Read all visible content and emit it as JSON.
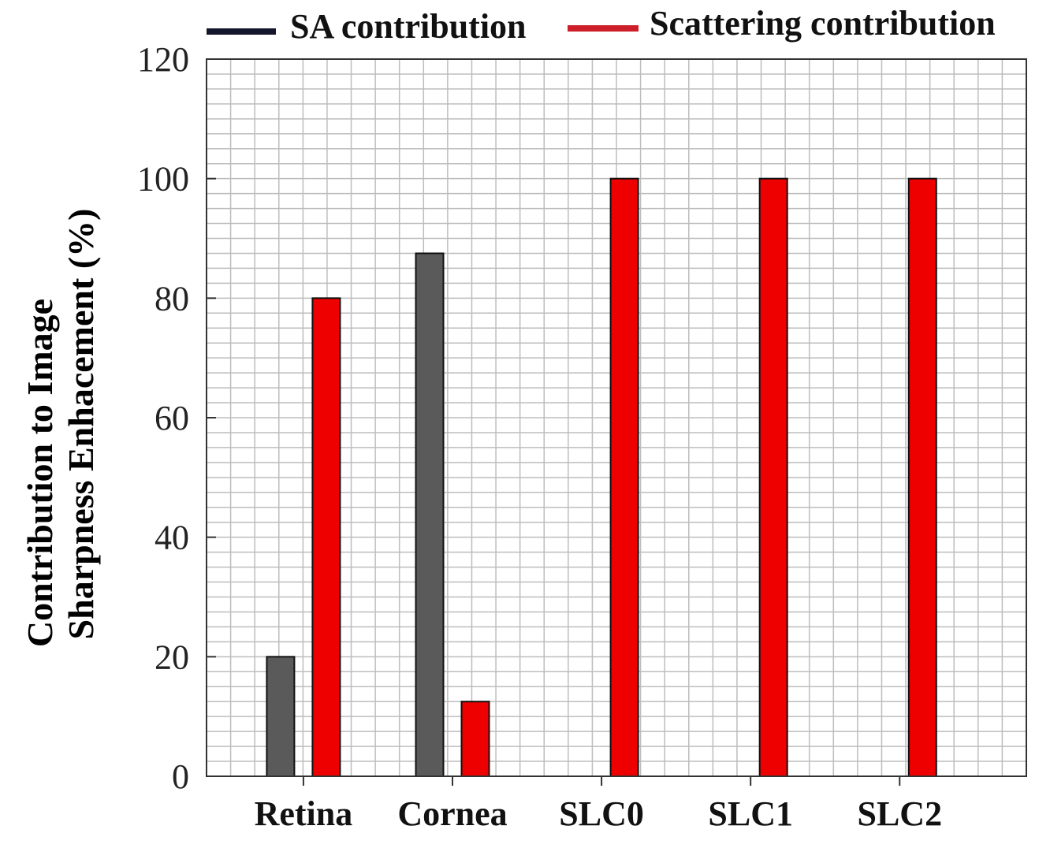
{
  "chart_data": {
    "type": "bar",
    "title": "",
    "categories": [
      "Retina",
      "Cornea",
      "SLC0",
      "SLC1",
      "SLC2"
    ],
    "series": [
      {
        "name": "SA contribution",
        "legend_color": "#14172b",
        "bar_color": "#5a5a5a",
        "values": [
          20,
          87.5,
          0,
          0,
          0
        ]
      },
      {
        "name": "Scattering contribution",
        "legend_color": "#cc1f2a",
        "bar_color": "#ee0000",
        "values": [
          80,
          12.5,
          100,
          100,
          100
        ]
      }
    ],
    "xlabel": "",
    "ylabel_line1": "Contribution to Image",
    "ylabel_line2": "Sharpness Enhacement (%)",
    "ylim": [
      0,
      120
    ],
    "yticks": [
      0,
      20,
      40,
      60,
      80,
      100,
      120
    ],
    "ytick_labels": [
      "0",
      "20",
      "40",
      "60",
      "80",
      "100",
      "120"
    ],
    "grid": true,
    "legend_position": "top"
  }
}
